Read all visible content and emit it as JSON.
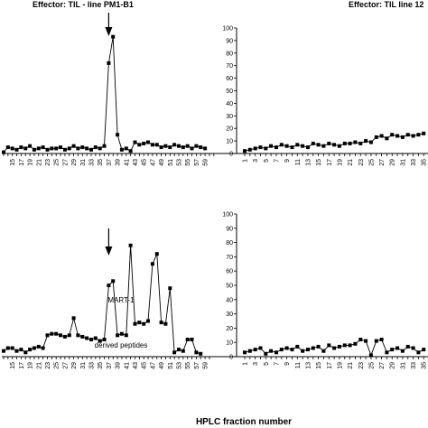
{
  "figure": {
    "xlabel": "HPLC fraction number"
  },
  "chart_data": [
    {
      "id": "top-left",
      "type": "line",
      "title": "Effector: TIL - line PM1-B1",
      "x_start": 13,
      "x_step": 1,
      "tick_labels": [
        "15",
        "17",
        "19",
        "21",
        "23",
        "25",
        "27",
        "29",
        "31",
        "33",
        "35",
        "37",
        "39",
        "41",
        "43",
        "45",
        "47",
        "49",
        "51",
        "53",
        "55",
        "57",
        "59"
      ],
      "values": [
        1,
        5,
        4,
        3,
        5,
        4,
        6,
        3,
        4,
        5,
        3,
        4,
        4,
        5,
        3,
        4,
        6,
        4,
        5,
        4,
        3,
        5,
        4,
        6,
        72,
        93,
        15,
        3,
        4,
        2,
        9,
        7,
        8,
        9,
        7,
        7,
        5,
        6,
        5,
        7,
        6,
        5,
        6,
        4,
        6,
        5,
        4
      ],
      "ylim": [
        0,
        100
      ],
      "y_axis_visible": false,
      "annotation": "arrow"
    },
    {
      "id": "top-right",
      "type": "line",
      "title": "Effector: TIL line 12",
      "x_start": 1,
      "x_step": 1,
      "tick_labels": [
        "1",
        "3",
        "5",
        "7",
        "9",
        "11",
        "13",
        "15",
        "17",
        "19",
        "21",
        "23",
        "25",
        "27",
        "29",
        "31",
        "33",
        "35"
      ],
      "yticks": [
        "0",
        "10",
        "20",
        "30",
        "40",
        "50",
        "60",
        "70",
        "80",
        "90",
        "100"
      ],
      "values": [
        2,
        3,
        4,
        5,
        4,
        6,
        5,
        7,
        6,
        5,
        7,
        6,
        5,
        8,
        7,
        6,
        8,
        7,
        6,
        8,
        8,
        9,
        8,
        10,
        9,
        13,
        14,
        12,
        15,
        14,
        13,
        15,
        14,
        15,
        16,
        17
      ],
      "ylim": [
        0,
        100
      ]
    },
    {
      "id": "bottom-left",
      "type": "line",
      "x_start": 13,
      "x_step": 1,
      "tick_labels": [
        "15",
        "17",
        "19",
        "21",
        "23",
        "25",
        "27",
        "29",
        "31",
        "33",
        "35",
        "37",
        "39",
        "41",
        "43",
        "45",
        "47",
        "49",
        "51",
        "53",
        "55",
        "57",
        "59"
      ],
      "values": [
        4,
        6,
        6,
        4,
        5,
        3,
        5,
        6,
        7,
        6,
        15,
        16,
        16,
        15,
        14,
        15,
        27,
        15,
        14,
        13,
        12,
        13,
        11,
        12,
        50,
        53,
        15,
        16,
        15,
        78,
        23,
        24,
        23,
        25,
        65,
        72,
        24,
        23,
        48,
        3,
        5,
        4,
        12,
        12,
        3,
        2
      ],
      "ylim": [
        0,
        100
      ],
      "y_axis_visible": false,
      "annotation": "MART-1 derived peptides"
    },
    {
      "id": "bottom-right",
      "type": "line",
      "x_start": 1,
      "x_step": 1,
      "tick_labels": [
        "1",
        "3",
        "5",
        "7",
        "9",
        "11",
        "13",
        "15",
        "17",
        "19",
        "21",
        "23",
        "25",
        "27",
        "29",
        "31",
        "33",
        "35"
      ],
      "yticks": [
        "0",
        "10",
        "20",
        "30",
        "40",
        "50",
        "60",
        "70",
        "80",
        "90",
        "100"
      ],
      "values": [
        3,
        4,
        5,
        6,
        2,
        4,
        3,
        5,
        6,
        5,
        7,
        4,
        5,
        6,
        7,
        4,
        8,
        6,
        7,
        8,
        8,
        9,
        12,
        11,
        1,
        11,
        12,
        3,
        5,
        6,
        4,
        7,
        6,
        3,
        5,
        4
      ],
      "ylim": [
        0,
        100
      ]
    }
  ]
}
